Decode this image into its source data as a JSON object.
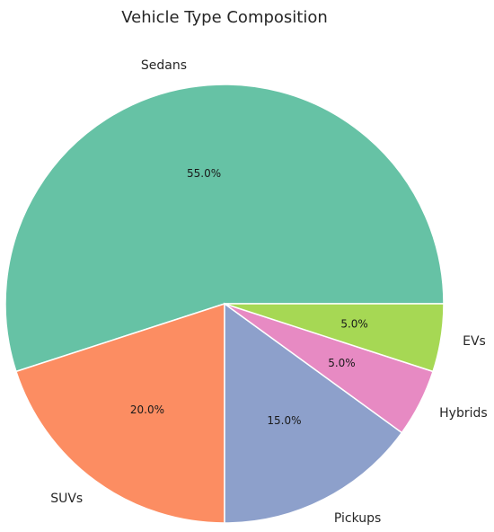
{
  "chart_data": {
    "type": "pie",
    "title": "Vehicle Type Composition",
    "categories": [
      "Sedans",
      "SUVs",
      "Pickups",
      "Hybrids",
      "EVs"
    ],
    "values": [
      55,
      20,
      15,
      5,
      5
    ],
    "value_labels": [
      "55.0%",
      "20.0%",
      "15.0%",
      "5.0%",
      "5.0%"
    ],
    "colors": [
      "#66c2a5",
      "#fc8d62",
      "#8da0cb",
      "#e78ac3",
      "#a6d854"
    ]
  }
}
